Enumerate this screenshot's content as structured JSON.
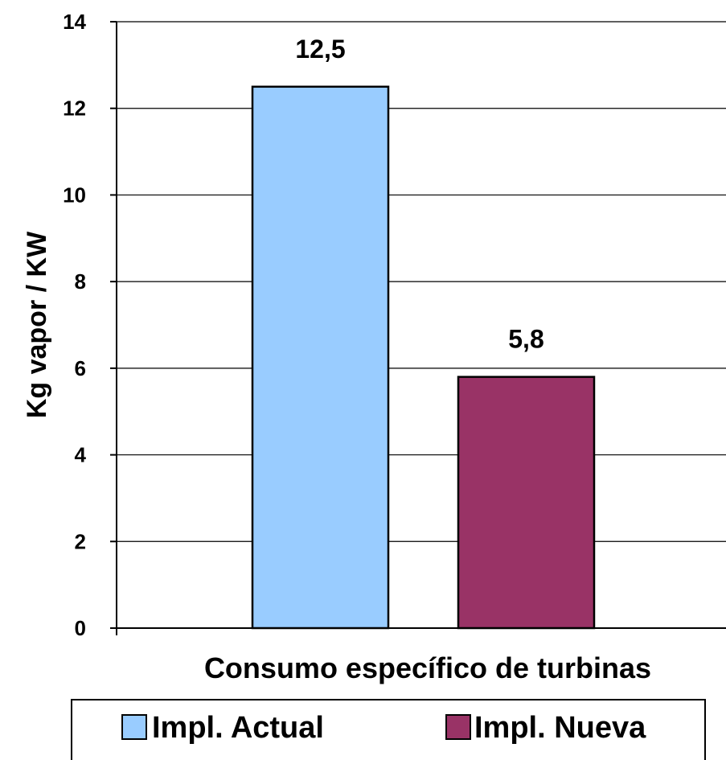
{
  "chart_data": {
    "type": "bar",
    "categories": [
      "Consumo específico de turbinas"
    ],
    "series": [
      {
        "name": "Impl. Actual",
        "values": [
          12.5
        ],
        "color": "#99ccff",
        "data_label": "12,5"
      },
      {
        "name": "Impl. Nueva",
        "values": [
          5.8
        ],
        "color": "#993366",
        "data_label": "5,8"
      }
    ],
    "title": "",
    "xlabel": "Consumo específico de turbinas",
    "ylabel": "Kg vapor / KW",
    "ylim": [
      0,
      14
    ],
    "yticks": [
      0,
      2,
      4,
      6,
      8,
      10,
      12,
      14
    ],
    "grid": true,
    "legend_position": "bottom"
  }
}
